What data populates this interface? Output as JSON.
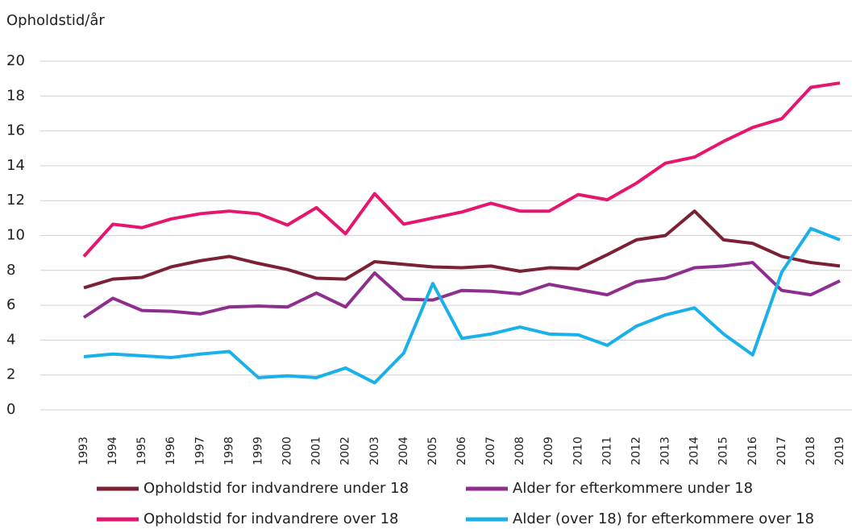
{
  "chart_data": {
    "type": "line",
    "ylabel": "Opholdstid/år",
    "categories": [
      "1993",
      "1994",
      "1995",
      "1996",
      "1997",
      "1998",
      "1999",
      "2000",
      "2001",
      "2002",
      "2003",
      "2004",
      "2005",
      "2006",
      "2007",
      "2008",
      "2009",
      "2010",
      "2011",
      "2012",
      "2013",
      "2014",
      "2015",
      "2016",
      "2017",
      "2018",
      "2019"
    ],
    "series": [
      {
        "name": "Opholdstid for indvandrere under 18",
        "color": "#7a2233",
        "values": [
          7.0,
          7.5,
          7.6,
          8.2,
          8.55,
          8.8,
          8.4,
          8.05,
          7.55,
          7.5,
          8.5,
          8.35,
          8.2,
          8.15,
          8.25,
          7.95,
          8.15,
          8.1,
          8.9,
          9.75,
          10.0,
          11.4,
          9.75,
          9.55,
          8.8,
          8.45,
          8.25
        ]
      },
      {
        "name": "Alder for efterkommere under 18",
        "color": "#8e2e8e",
        "values": [
          5.3,
          6.4,
          5.7,
          5.65,
          5.5,
          5.9,
          5.95,
          5.9,
          6.7,
          5.9,
          7.85,
          6.35,
          6.3,
          6.85,
          6.8,
          6.65,
          7.2,
          6.9,
          6.6,
          7.35,
          7.55,
          8.15,
          8.25,
          8.45,
          6.85,
          6.6,
          7.4
        ]
      },
      {
        "name": "Opholdstid for indvandrere over 18",
        "color": "#e6166e",
        "values": [
          8.8,
          10.65,
          10.45,
          10.95,
          11.25,
          11.4,
          11.25,
          10.6,
          11.6,
          10.1,
          12.4,
          10.65,
          11.0,
          11.35,
          11.85,
          11.4,
          11.4,
          12.35,
          12.05,
          13.0,
          14.15,
          14.5,
          15.4,
          16.2,
          16.7,
          18.5,
          18.75
        ]
      },
      {
        "name": "Alder (over 18) for efterkommere over 18",
        "color": "#1ab0e8",
        "values": [
          3.05,
          3.2,
          3.1,
          3.0,
          3.2,
          3.35,
          1.85,
          1.95,
          1.85,
          2.4,
          1.55,
          3.25,
          7.25,
          4.1,
          4.35,
          4.75,
          4.35,
          4.3,
          3.7,
          4.8,
          5.45,
          5.85,
          4.35,
          3.15,
          7.9,
          10.4,
          9.75
        ]
      }
    ],
    "ylim": [
      0,
      20
    ],
    "yticks": [
      0,
      2,
      4,
      6,
      8,
      10,
      12,
      14,
      16,
      18,
      20
    ],
    "grid": true
  }
}
